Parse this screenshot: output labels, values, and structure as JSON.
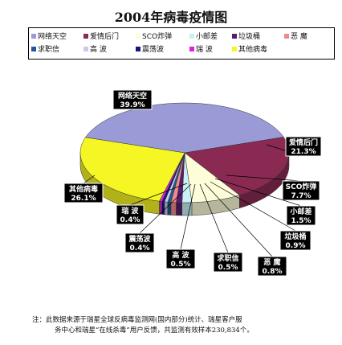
{
  "chart_data": {
    "type": "pie",
    "title": "2004年病毒疫情图",
    "slices": [
      {
        "label": "网络天空",
        "value": 39.9,
        "value_label": "39.9%",
        "color": "#9a9ad6"
      },
      {
        "label": "爱情后门",
        "value": 21.3,
        "value_label": "21.3%",
        "color": "#8a2a52"
      },
      {
        "label": "SCO炸弹",
        "value": 7.7,
        "value_label": "7.7%",
        "color": "#fdfdd9"
      },
      {
        "label": "小邮差",
        "value": 1.5,
        "value_label": "1.5%",
        "color": "#c8f0f6"
      },
      {
        "label": "垃圾桶",
        "value": 0.9,
        "value_label": "0.9%",
        "color": "#5a1a6e"
      },
      {
        "label": "恶 魔",
        "value": 0.8,
        "value_label": "0.8%",
        "color": "#ef8a8a"
      },
      {
        "label": "求职信",
        "value": 0.5,
        "value_label": "0.5%",
        "color": "#1f5a98"
      },
      {
        "label": "高 波",
        "value": 0.5,
        "value_label": "0.5%",
        "color": "#c8c8f0"
      },
      {
        "label": "震荡波",
        "value": 0.4,
        "value_label": "0.4%",
        "color": "#14147e"
      },
      {
        "label": "瑞 波",
        "value": 0.4,
        "value_label": "0.4%",
        "color": "#e020d8"
      },
      {
        "label": "其他病毒",
        "value": 26.1,
        "value_label": "26.1%",
        "color": "#f6f624"
      }
    ],
    "legend_position": "top"
  },
  "note": {
    "line1": "注：此数据来源于瑞星全球反病毒监测网(国内部分)统计、瑞星客户服",
    "line2": "务中心和瑞星“在线杀毒”用户反馈，共监测有效样本230,834个。"
  }
}
